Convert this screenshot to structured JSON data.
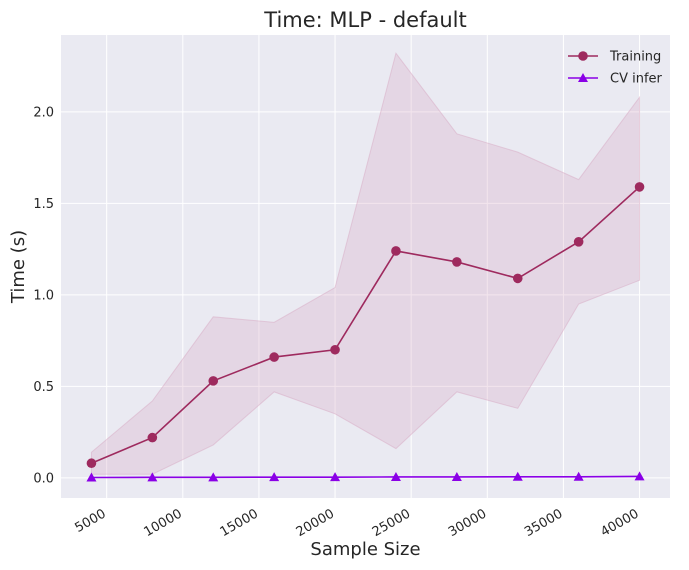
{
  "chart_data": {
    "type": "line",
    "title": "Time: MLP - default",
    "xlabel": "Sample Size",
    "ylabel": "Time (s)",
    "xlim": [
      2000,
      42000
    ],
    "ylim": [
      -0.11,
      2.42
    ],
    "xticks": [
      5000,
      10000,
      15000,
      20000,
      25000,
      30000,
      35000,
      40000
    ],
    "xtick_labels": [
      "5000",
      "10000",
      "15000",
      "20000",
      "25000",
      "30000",
      "35000",
      "40000"
    ],
    "yticks": [
      0.0,
      0.5,
      1.0,
      1.5,
      2.0
    ],
    "ytick_labels": [
      "0.0",
      "0.5",
      "1.0",
      "1.5",
      "2.0"
    ],
    "grid": true,
    "legend_position": "top-right",
    "x": [
      4000,
      8000,
      12000,
      16000,
      20000,
      24000,
      28000,
      32000,
      36000,
      40000
    ],
    "series": [
      {
        "name": "Training",
        "color": "#9e2a5e",
        "marker": "circle",
        "values": [
          0.08,
          0.22,
          0.53,
          0.66,
          0.7,
          1.24,
          1.18,
          1.09,
          1.29,
          1.59
        ],
        "band_upper": [
          0.14,
          0.42,
          0.88,
          0.85,
          1.04,
          2.32,
          1.88,
          1.78,
          1.63,
          2.08
        ],
        "band_lower": [
          0.02,
          0.02,
          0.18,
          0.47,
          0.35,
          0.16,
          0.47,
          0.38,
          0.95,
          1.08
        ],
        "band_color": "#d8a9c4"
      },
      {
        "name": "CV infer",
        "color": "#8a00e6",
        "marker": "triangle",
        "values": [
          0.002,
          0.003,
          0.003,
          0.004,
          0.004,
          0.005,
          0.005,
          0.006,
          0.006,
          0.008
        ]
      }
    ]
  }
}
